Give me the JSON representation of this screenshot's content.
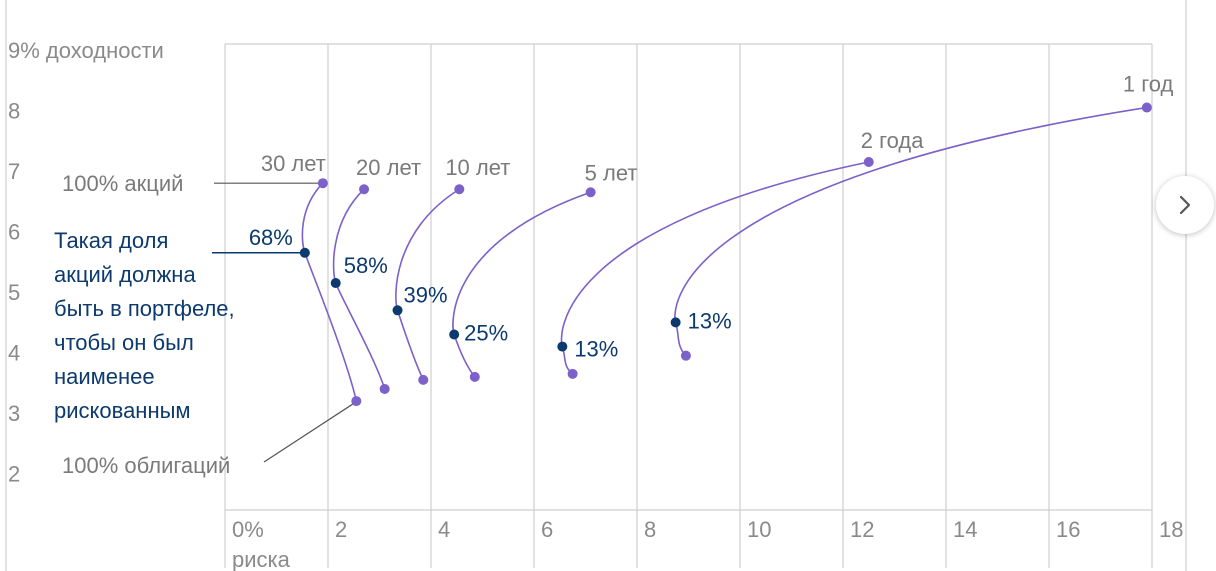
{
  "chart_data": {
    "type": "line",
    "ylabel": "% доходности",
    "xlabel": "% риска",
    "xlim": [
      0,
      18
    ],
    "ylim": [
      1.4,
      9.1
    ],
    "x_ticks": [
      "0",
      "2",
      "4",
      "6",
      "8",
      "10",
      "12",
      "14",
      "16",
      "18"
    ],
    "x_tick_values": [
      0,
      2,
      4,
      6,
      8,
      10,
      12,
      14,
      16,
      18
    ],
    "y_ticks": [
      "9",
      "8",
      "7",
      "6",
      "5",
      "4",
      "3",
      "2"
    ],
    "y_tick_values": [
      9,
      8,
      7,
      6,
      5,
      4,
      3,
      2
    ],
    "grid": "vertical",
    "series": [
      {
        "name": "30 лет",
        "top": [
          1.9,
          6.8
        ],
        "opt": [
          1.55,
          5.65
        ],
        "bottom": [
          2.55,
          3.2
        ],
        "pct": "68%"
      },
      {
        "name": "20 лет",
        "top": [
          2.7,
          6.7
        ],
        "opt": [
          2.15,
          5.15
        ],
        "bottom": [
          3.1,
          3.4
        ],
        "pct": "58%"
      },
      {
        "name": "10 лет",
        "top": [
          4.55,
          6.7
        ],
        "opt": [
          3.35,
          4.7
        ],
        "bottom": [
          3.85,
          3.55
        ],
        "pct": "39%"
      },
      {
        "name": "5 лет",
        "top": [
          7.1,
          6.65
        ],
        "opt": [
          4.45,
          4.3
        ],
        "bottom": [
          4.85,
          3.6
        ],
        "pct": "25%"
      },
      {
        "name": "2 года",
        "top": [
          12.5,
          7.15
        ],
        "opt": [
          6.55,
          4.1
        ],
        "bottom": [
          6.75,
          3.65
        ],
        "pct": "13%"
      },
      {
        "name": "1 год",
        "top": [
          17.9,
          8.05
        ],
        "opt": [
          8.75,
          4.5
        ],
        "bottom": [
          8.95,
          3.95
        ],
        "pct": "13%"
      }
    ],
    "annotations": {
      "stocks": "100% акций",
      "bonds": "100% облигаций",
      "note": [
        "Такая доля",
        "акций должна",
        "быть в портфеле,",
        "чтобы он был",
        "наименее",
        "рискованным"
      ]
    },
    "colors": {
      "curve": "#7b61c9",
      "point": "#7b61c9",
      "optimal_point": "#0d3a6e",
      "grid": "#cfcfcf",
      "tick": "#8a8a8a",
      "note": "#0d3a6e"
    }
  },
  "nav": {
    "next_icon": "chevron-right-icon"
  }
}
